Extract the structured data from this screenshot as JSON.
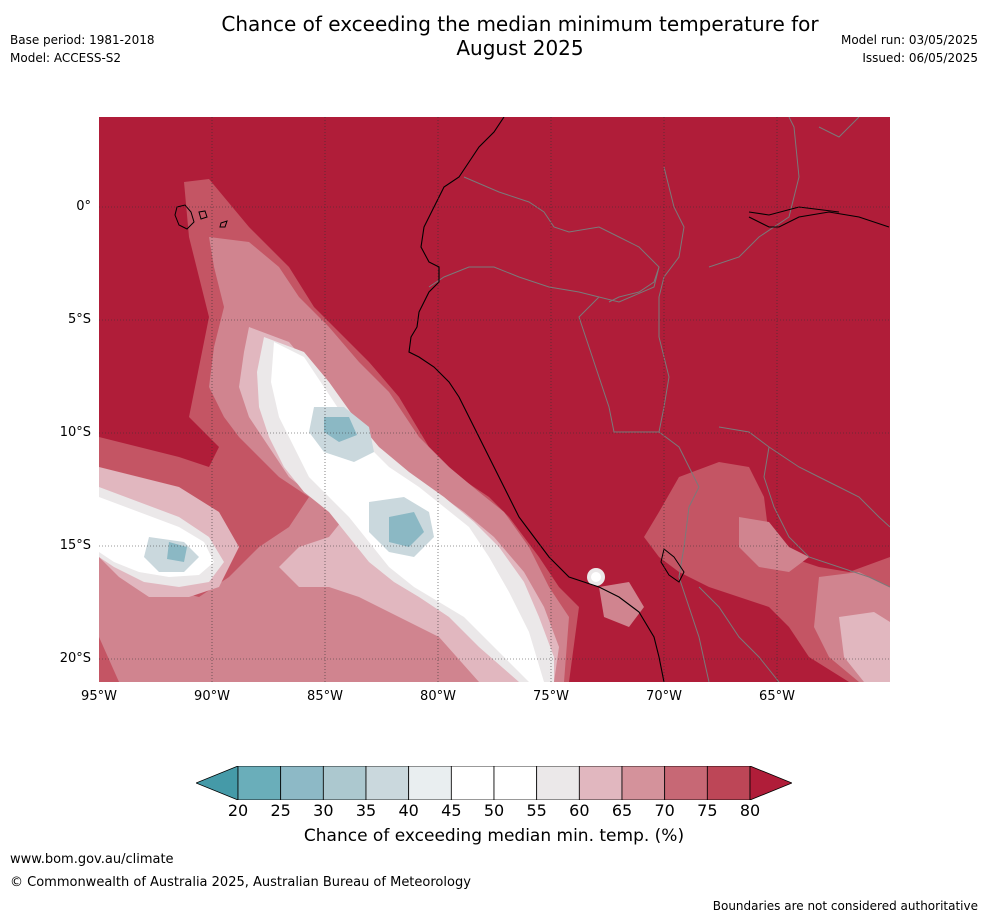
{
  "title_line1": "Chance of exceeding the median minimum temperature for",
  "title_line2": "August 2025",
  "base_period": "Base period: 1981-2018",
  "model": "Model: ACCESS-S2",
  "model_run": "Model run: 03/05/2025",
  "issued": "Issued: 06/05/2025",
  "lat_labels": [
    "0°",
    "5°S",
    "10°S",
    "15°S",
    "20°S"
  ],
  "lon_labels": [
    "95°W",
    "90°W",
    "85°W",
    "80°W",
    "75°W",
    "70°W",
    "65°W"
  ],
  "colorbar": {
    "ticks": [
      "20",
      "25",
      "30",
      "35",
      "40",
      "45",
      "50",
      "55",
      "60",
      "65",
      "70",
      "75",
      "80"
    ],
    "colors": [
      "#459aa8",
      "#6aaeba",
      "#8db9c6",
      "#acc8cf",
      "#cad8dd",
      "#e9eef0",
      "#ffffff",
      "#ffffff",
      "#ebe8e9",
      "#e1b7bf",
      "#d4929b",
      "#c76875",
      "#bd4657",
      "#b01d39"
    ],
    "label": "Chance of exceeding median min. temp. (%)"
  },
  "map_colors": {
    "ocean_high": "#b01d39",
    "land_high": "#b01d39",
    "band_75": "#c45564",
    "band_70": "#d0848f",
    "band_65": "#e1b7bf",
    "band_55": "#ebe8e9",
    "band_50": "#ffffff",
    "band_35": "#b2ccd3",
    "band_25": "#8bb8c4",
    "coast": "#000000",
    "border": "#7a7a7a"
  },
  "footer_url": "www.bom.gov.au/climate",
  "footer_copyright": "© Commonwealth of Australia 2025, Australian Bureau of Meteorology",
  "footer_note": "Boundaries are not considered authoritative"
}
